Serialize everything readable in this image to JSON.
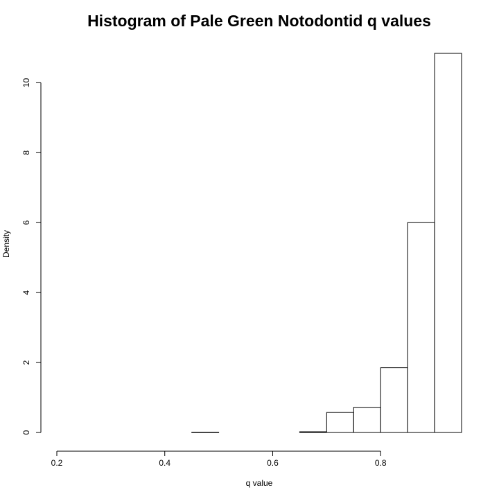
{
  "chart_data": {
    "type": "bar",
    "title": "Histogram of Pale Green Notodontid q values",
    "xlabel": "q value",
    "ylabel": "Density",
    "xlim": [
      0.2,
      0.95
    ],
    "ylim": [
      0,
      10.8
    ],
    "x_ticks": [
      0.2,
      0.4,
      0.6,
      0.8
    ],
    "x_tick_labels": [
      "0.2",
      "0.4",
      "0.6",
      "0.8"
    ],
    "y_ticks": [
      0,
      2,
      4,
      6,
      8,
      10
    ],
    "y_tick_labels": [
      "0",
      "2",
      "4",
      "6",
      "8",
      "10"
    ],
    "bin_edges": [
      0.2,
      0.25,
      0.3,
      0.35,
      0.4,
      0.45,
      0.5,
      0.55,
      0.6,
      0.65,
      0.7,
      0.75,
      0.8,
      0.85,
      0.9,
      0.95
    ],
    "values": [
      0,
      0,
      0,
      0,
      0,
      0.01,
      0,
      0,
      0,
      0.02,
      0.57,
      0.72,
      1.85,
      6.0,
      10.84
    ],
    "grid": false,
    "bar_fill": "#ffffff",
    "bar_stroke": "#000000"
  }
}
